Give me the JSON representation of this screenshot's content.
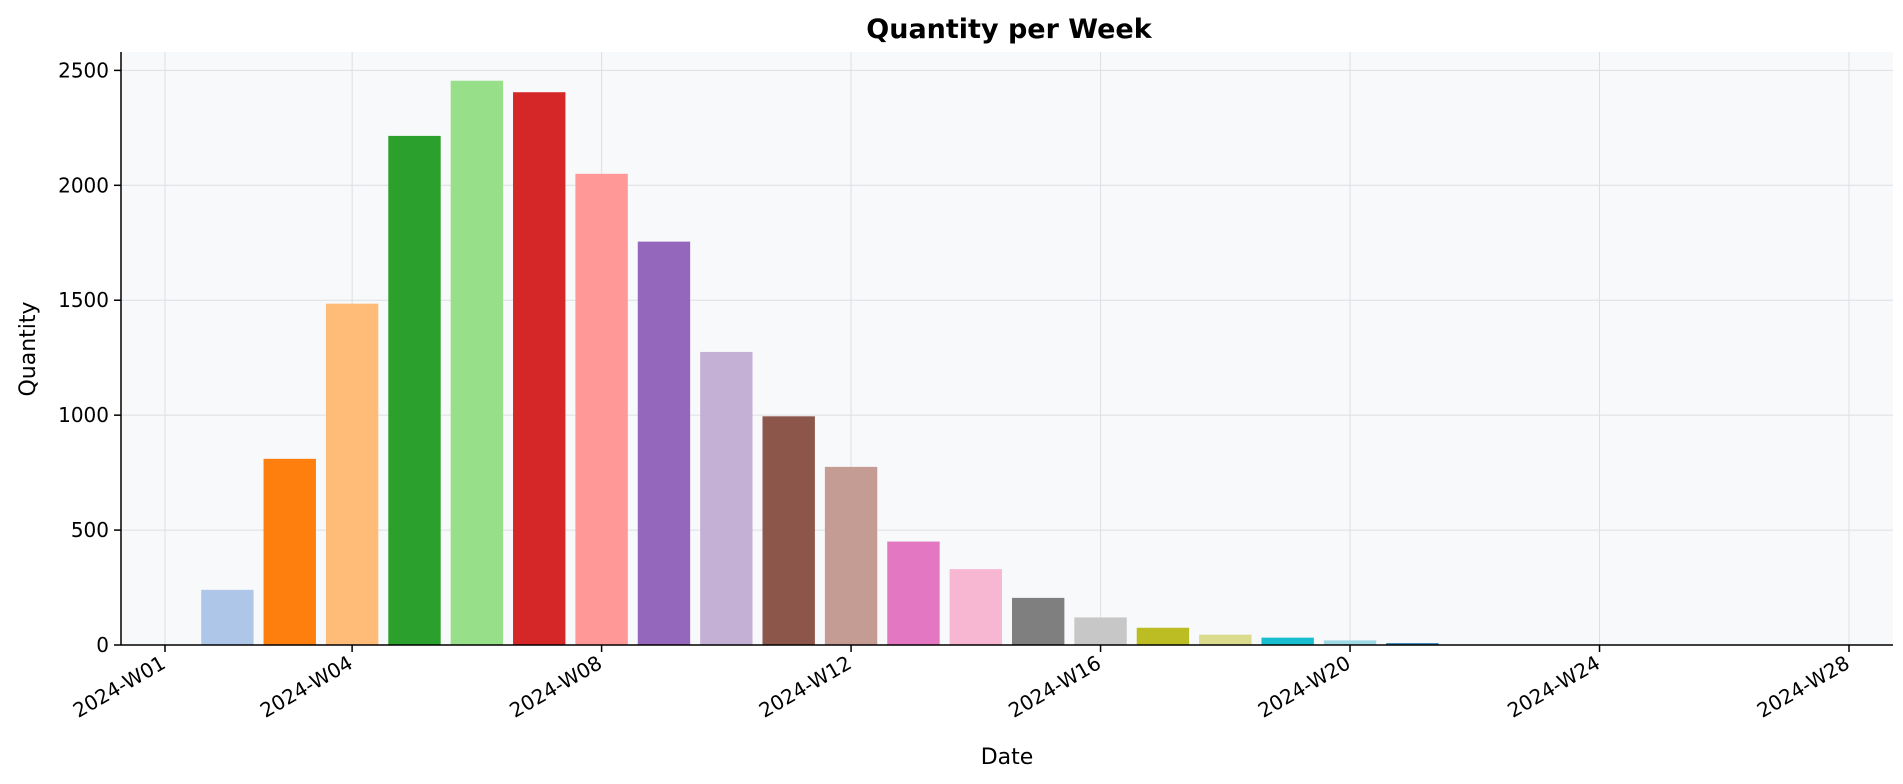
{
  "chart_data": {
    "type": "bar",
    "title": "Quantity per Week",
    "xlabel": "Date",
    "ylabel": "Quantity",
    "x_tick_labels": [
      "2024-W01",
      "2024-W04",
      "2024-W08",
      "2024-W12",
      "2024-W16",
      "2024-W20",
      "2024-W24",
      "2024-W28"
    ],
    "y_ticks": [
      0,
      500,
      1000,
      1500,
      2000,
      2500
    ],
    "ylim": [
      0,
      2580
    ],
    "grid": true,
    "weeks": [
      2,
      3,
      4,
      5,
      6,
      7,
      8,
      9,
      10,
      11,
      12,
      13,
      14,
      15,
      16,
      17,
      18,
      19,
      20,
      21
    ],
    "values": [
      240,
      810,
      1485,
      2215,
      2455,
      2405,
      2050,
      1755,
      1275,
      995,
      775,
      450,
      330,
      205,
      120,
      75,
      45,
      32,
      20,
      8
    ],
    "colors": [
      "#aec7e8",
      "#ff7f0e",
      "#ffbb78",
      "#2ca02c",
      "#98df8a",
      "#d62728",
      "#ff9896",
      "#9467bd",
      "#c5b0d5",
      "#8c564b",
      "#c49c94",
      "#e377c2",
      "#f7b6d2",
      "#7f7f7f",
      "#c7c7c7",
      "#bcbd22",
      "#dbdb8d",
      "#17becf",
      "#9edae5",
      "#1f77b4"
    ]
  }
}
